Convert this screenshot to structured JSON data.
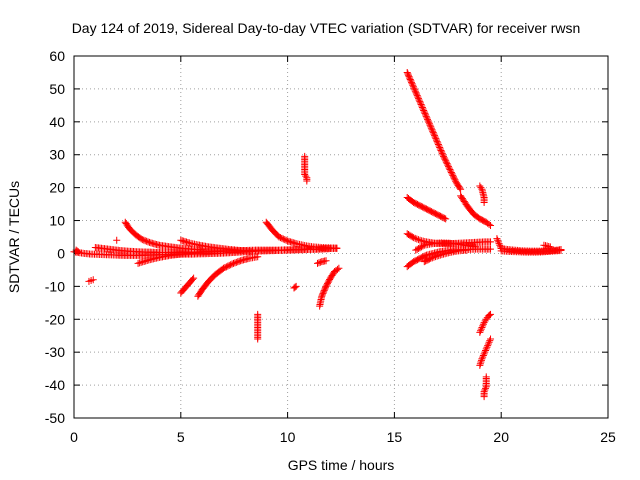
{
  "chart_data": {
    "type": "scatter",
    "title": "Day 124 of 2019, Sidereal Day-to-day VTEC variation (SDTVAR) for receiver rwsn",
    "xlabel": "GPS time / hours",
    "ylabel": "SDTVAR / TECUs",
    "xlim": [
      0,
      25
    ],
    "ylim": [
      -50,
      60
    ],
    "xticks": [
      0,
      5,
      10,
      15,
      20,
      25
    ],
    "yticks": [
      -50,
      -40,
      -30,
      -20,
      -10,
      0,
      10,
      20,
      30,
      40,
      50,
      60
    ],
    "grid": true,
    "legend": "none",
    "marker": "plus",
    "color": "#ff0000",
    "series": [
      {
        "segments": [
          {
            "x": [
              0.0,
              0.2,
              0.5,
              0.8,
              1.2,
              1.6,
              2.0,
              2.5,
              3.0,
              3.5,
              4.0,
              4.5,
              5.0,
              5.5,
              6.0,
              6.5,
              7.0,
              7.5,
              8.0,
              8.5,
              9.0,
              9.5,
              10.0,
              10.5,
              11.0,
              11.5,
              12.0,
              12.3
            ],
            "y": [
              0.5,
              0.3,
              0.0,
              -0.2,
              -0.3,
              -0.4,
              -0.5,
              -0.6,
              -0.6,
              -0.5,
              -0.4,
              -0.3,
              -0.2,
              -0.2,
              -0.1,
              0.0,
              0.1,
              0.3,
              0.5,
              0.7,
              0.8,
              0.9,
              1.0,
              1.1,
              1.2,
              1.3,
              1.5,
              1.6
            ]
          },
          {
            "x": [
              1.0,
              1.5,
              2.0,
              2.5,
              3.0,
              3.5,
              4.0,
              4.5,
              5.0,
              5.5,
              6.0,
              6.5,
              7.0,
              7.5,
              8.0,
              8.5,
              9.0,
              9.5,
              10.0,
              10.5,
              11.0,
              11.5,
              12.0,
              12.3
            ],
            "y": [
              1.8,
              1.4,
              1.0,
              0.7,
              0.5,
              0.4,
              0.3,
              0.3,
              0.3,
              0.4,
              0.5,
              0.6,
              0.7,
              0.8,
              0.9,
              1.0,
              1.0,
              1.0,
              1.1,
              1.2,
              1.3,
              1.4,
              1.5,
              1.6
            ]
          },
          {
            "x": [
              2.4,
              2.6,
              2.9,
              3.2,
              3.6,
              4.0,
              4.5,
              5.0,
              5.5,
              6.0
            ],
            "y": [
              9.5,
              7.5,
              5.6,
              4.2,
              3.2,
              2.5,
              2.0,
              1.6,
              1.3,
              1.1
            ]
          },
          {
            "x": [
              3.0,
              3.5,
              4.0,
              4.5,
              5.0,
              5.5,
              6.0,
              6.5,
              7.0
            ],
            "y": [
              -3.0,
              -2.0,
              -1.2,
              -0.6,
              -0.2,
              0.1,
              0.4,
              0.6,
              0.8
            ]
          },
          {
            "x": [
              5.0,
              5.4,
              5.8,
              6.3,
              6.8,
              7.3,
              7.8,
              8.3
            ],
            "y": [
              4.0,
              3.2,
              2.6,
              2.0,
              1.6,
              1.2,
              0.9,
              0.6
            ]
          },
          {
            "x": [
              5.0,
              5.2,
              5.4,
              5.6
            ],
            "y": [
              -12.0,
              -10.5,
              -9.0,
              -7.5
            ]
          },
          {
            "x": [
              5.8,
              6.0,
              6.3,
              6.6,
              7.0,
              7.4,
              7.8,
              8.2,
              8.6
            ],
            "y": [
              -13.0,
              -11.0,
              -8.5,
              -6.5,
              -4.5,
              -3.2,
              -2.2,
              -1.5,
              -1.0
            ]
          },
          {
            "x": [
              8.6,
              8.6,
              8.6,
              8.6,
              8.6,
              8.6,
              8.6
            ],
            "y": [
              -26.0,
              -25.0,
              -23.5,
              -22.0,
              -20.5,
              -19.5,
              -18.5
            ]
          },
          {
            "x": [
              9.0,
              9.3,
              9.6,
              10.0,
              10.4,
              10.8,
              11.2,
              11.6,
              12.0,
              12.3
            ],
            "y": [
              9.5,
              7.0,
              5.0,
              3.8,
              3.0,
              2.4,
              2.0,
              1.8,
              1.7,
              1.6
            ]
          },
          {
            "x": [
              10.3,
              10.4
            ],
            "y": [
              -10.5,
              -10.0
            ]
          },
          {
            "x": [
              10.8,
              10.8,
              10.8,
              10.8,
              10.8,
              10.9,
              10.9,
              10.9
            ],
            "y": [
              29.5,
              28.0,
              26.5,
              25.0,
              24.0,
              23.0,
              22.5,
              22.0
            ]
          },
          {
            "x": [
              11.4,
              11.6,
              11.8
            ],
            "y": [
              -3.0,
              -2.5,
              -2.2
            ]
          },
          {
            "x": [
              11.5,
              11.6,
              11.8,
              12.0,
              12.2,
              12.4
            ],
            "y": [
              -16.0,
              -13.0,
              -10.0,
              -7.5,
              -5.5,
              -4.5
            ]
          },
          {
            "x": [
              0.1,
              0.2
            ],
            "y": [
              1.0,
              0.5
            ]
          },
          {
            "x": [
              0.7,
              0.8,
              0.9
            ],
            "y": [
              -8.5,
              -8.2,
              -8.0
            ]
          },
          {
            "x": [
              2.0
            ],
            "y": [
              4.0
            ]
          },
          {
            "x": [
              15.6,
              15.8,
              16.1,
              16.4,
              16.7,
              17.0,
              17.3,
              17.6,
              17.9,
              18.1
            ],
            "y": [
              55.0,
              52.0,
              47.5,
              43.0,
              38.5,
              34.0,
              29.5,
              25.5,
              21.5,
              19.5
            ]
          },
          {
            "x": [
              15.6,
              15.9,
              16.2,
              16.5,
              16.8,
              17.1,
              17.4,
              17.7,
              18.0,
              18.3,
              18.6,
              18.9,
              19.2,
              19.5
            ],
            "y": [
              6.0,
              4.8,
              4.0,
              3.5,
              3.2,
              3.0,
              3.0,
              3.0,
              3.1,
              3.2,
              3.3,
              3.4,
              3.5,
              3.5
            ]
          },
          {
            "x": [
              15.6,
              15.9,
              16.2,
              16.5,
              16.8,
              17.1,
              17.4,
              17.7,
              18.0,
              18.4,
              18.8,
              19.2,
              19.5
            ],
            "y": [
              -4.0,
              -2.5,
              -1.5,
              -0.5,
              0.0,
              0.5,
              0.8,
              1.0,
              1.1,
              1.2,
              1.3,
              1.3,
              1.3
            ]
          },
          {
            "x": [
              15.6,
              15.9,
              16.2,
              16.5,
              16.8,
              17.1,
              17.4
            ],
            "y": [
              17.0,
              15.5,
              14.5,
              13.5,
              12.5,
              11.5,
              10.5
            ]
          },
          {
            "x": [
              16.0,
              16.4,
              16.8,
              17.2,
              17.6,
              18.0,
              18.4,
              18.8
            ],
            "y": [
              1.0,
              2.5,
              3.0,
              3.2,
              3.1,
              2.8,
              2.4,
              2.0
            ]
          },
          {
            "x": [
              16.4,
              16.7,
              17.0,
              17.3,
              17.6,
              18.0,
              18.4
            ],
            "y": [
              -2.5,
              -1.5,
              -0.8,
              -0.2,
              0.3,
              0.8,
              1.0
            ]
          },
          {
            "x": [
              18.1,
              18.4,
              18.7,
              19.0,
              19.3,
              19.5
            ],
            "y": [
              17.5,
              14.5,
              12.0,
              10.5,
              9.5,
              8.5
            ]
          },
          {
            "x": [
              19.0,
              19.1,
              19.2,
              19.2
            ],
            "y": [
              20.5,
              19.5,
              17.0,
              15.5
            ]
          },
          {
            "x": [
              19.0,
              19.1,
              19.2,
              19.3,
              19.4,
              19.5
            ],
            "y": [
              -24.0,
              -22.5,
              -21.0,
              -20.0,
              -19.0,
              -18.5
            ]
          },
          {
            "x": [
              19.0,
              19.1,
              19.2,
              19.3,
              19.4,
              19.5
            ],
            "y": [
              -34.0,
              -32.0,
              -30.5,
              -29.0,
              -27.5,
              -26.0
            ]
          },
          {
            "x": [
              19.2,
              19.2,
              19.3,
              19.3,
              19.3
            ],
            "y": [
              -43.5,
              -42.0,
              -40.5,
              -39.0,
              -37.5
            ]
          },
          {
            "x": [
              19.8,
              19.9,
              20.0
            ],
            "y": [
              4.5,
              3.0,
              1.5
            ]
          },
          {
            "x": [
              20.0,
              20.3,
              20.6,
              21.0,
              21.4,
              21.8,
              22.2,
              22.6,
              22.8
            ],
            "y": [
              1.5,
              1.2,
              1.0,
              0.8,
              0.7,
              0.7,
              0.8,
              1.0,
              1.2
            ]
          },
          {
            "x": [
              20.0,
              20.4,
              20.8,
              21.2,
              21.6,
              22.0,
              22.4,
              22.8
            ],
            "y": [
              0.8,
              0.6,
              0.5,
              0.4,
              0.4,
              0.5,
              0.7,
              0.9
            ]
          },
          {
            "x": [
              22.0,
              22.3
            ],
            "y": [
              2.5,
              2.0
            ]
          }
        ]
      }
    ]
  }
}
